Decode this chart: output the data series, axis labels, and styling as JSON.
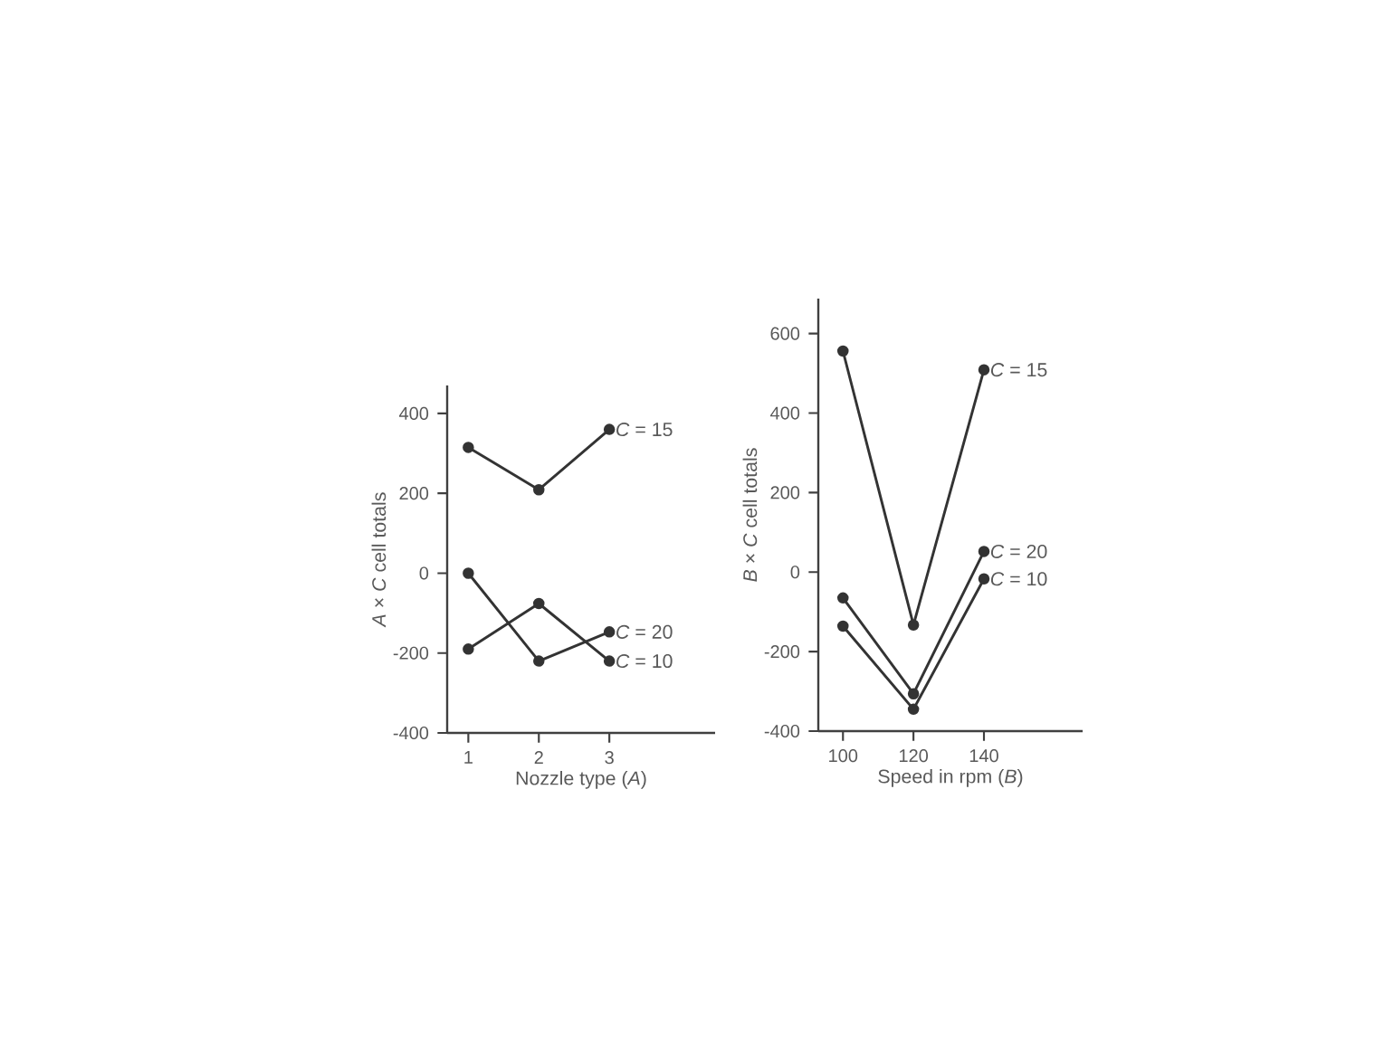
{
  "chart_data": [
    {
      "type": "line",
      "xlabel": "Nozzle type (*A*)",
      "ylabel": "*A* × *C* cell totals",
      "x": [
        1,
        2,
        3
      ],
      "xlim": [
        0.7,
        4.5
      ],
      "ylim": [
        -400,
        470
      ],
      "xticks": [
        1,
        2,
        3
      ],
      "yticks": [
        -400,
        -200,
        0,
        200,
        400
      ],
      "marker": "circle",
      "series": [
        {
          "name": "*C* = 15",
          "color": "#333333",
          "values": [
            315,
            209,
            360
          ]
        },
        {
          "name": "*C* = 20",
          "color": "#333333",
          "values": [
            0,
            -220,
            -147
          ]
        },
        {
          "name": "*C* = 10",
          "color": "#333333",
          "values": [
            -190,
            -76,
            -220
          ]
        }
      ]
    },
    {
      "type": "line",
      "xlabel": "Speed in rpm (*B*)",
      "ylabel": "*B* × *C* cell totals",
      "x": [
        100,
        120,
        140
      ],
      "xlim": [
        93,
        168
      ],
      "ylim": [
        -400,
        688
      ],
      "xticks": [
        100,
        120,
        140
      ],
      "yticks": [
        -400,
        -200,
        0,
        200,
        400,
        600
      ],
      "marker": "circle",
      "series": [
        {
          "name": "*C* = 15",
          "color": "#333333",
          "values": [
            556,
            -133,
            509
          ]
        },
        {
          "name": "*C* = 20",
          "color": "#333333",
          "values": [
            -65,
            -306,
            52
          ]
        },
        {
          "name": "*C* = 10",
          "color": "#333333",
          "values": [
            -136,
            -345,
            -17
          ]
        }
      ]
    }
  ]
}
